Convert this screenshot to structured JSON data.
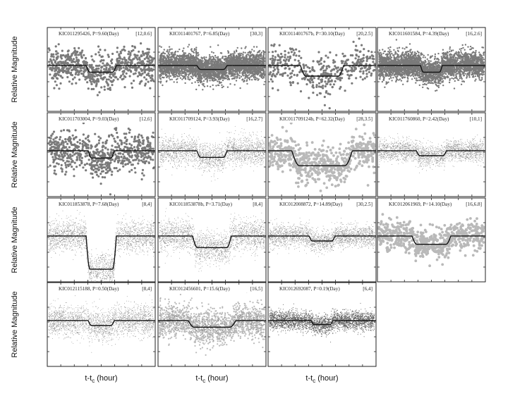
{
  "figure": {
    "y_axis_label": "Relative Magnitude",
    "x_axis_label_main": "t-t",
    "x_axis_label_sub": "c",
    "x_axis_label_unit": " (hour)"
  },
  "colors": {
    "axis": "#222222",
    "model_line": "#111111",
    "dark_points": "#7a7a7a",
    "light_points": "#b9b9b9",
    "fine_points": "#8c8c8c"
  },
  "chart_data": [
    {
      "type": "scatter",
      "title": "KIC011295426, P=9.60(Day)",
      "tag": "[12,0.6]",
      "point_style": "dark-large",
      "depth": 0.2,
      "noise": 0.55,
      "width": 0.14,
      "row": 0,
      "col": 0
    },
    {
      "type": "scatter",
      "title": "KIC011401767, P=6.85(Day)",
      "tag": "[30,3]",
      "point_style": "dark-dense",
      "depth": 0.12,
      "noise": 0.42,
      "width": 0.14,
      "row": 0,
      "col": 1
    },
    {
      "type": "scatter",
      "title": "KIC011401767b, P=30.10(Day)",
      "tag": "[20,2.5]",
      "point_style": "dark-large-sparse",
      "depth": 0.32,
      "noise": 0.6,
      "width": 0.2,
      "row": 0,
      "col": 2
    },
    {
      "type": "scatter",
      "title": "KIC011601584, P=4.39(Day)",
      "tag": "[16,2.6]",
      "point_style": "dark-dense",
      "depth": 0.2,
      "noise": 0.42,
      "width": 0.1,
      "row": 0,
      "col": 3
    },
    {
      "type": "scatter",
      "title": "KIC011703004, P=9.03(Day)",
      "tag": "[12,6]",
      "point_style": "dark-large",
      "depth": 0.22,
      "noise": 0.6,
      "width": 0.12,
      "row": 1,
      "col": 0
    },
    {
      "type": "scatter",
      "title": "KIC011709124, P=3.93(Day)",
      "tag": "[16,2.7]",
      "point_style": "fine",
      "depth": 0.2,
      "noise": 0.45,
      "width": 0.14,
      "row": 1,
      "col": 1
    },
    {
      "type": "scatter",
      "title": "KIC011709124b, P=62.32(Day)",
      "tag": "[28,3.5]",
      "point_style": "light-large",
      "depth": 0.45,
      "noise": 0.6,
      "width": 0.28,
      "row": 1,
      "col": 2
    },
    {
      "type": "scatter",
      "title": "KIC011760860, P=2.42(Day)",
      "tag": "[10,1]",
      "point_style": "fine",
      "depth": 0.15,
      "noise": 0.35,
      "width": 0.14,
      "row": 1,
      "col": 3
    },
    {
      "type": "scatter",
      "title": "KIC011853878, P=7.68(Day)",
      "tag": "[8,4]",
      "point_style": "fine",
      "depth": 1.0,
      "noise": 0.5,
      "width": 0.14,
      "row": 2,
      "col": 0
    },
    {
      "type": "scatter",
      "title": "KIC011853878b, P=3.71(Day)",
      "tag": "[8,4]",
      "point_style": "fine",
      "depth": 0.35,
      "noise": 0.5,
      "width": 0.18,
      "row": 2,
      "col": 1
    },
    {
      "type": "scatter",
      "title": "KIC012008872, P=14.89(Day)",
      "tag": "[30,2.5]",
      "point_style": "fine",
      "depth": 0.15,
      "noise": 0.35,
      "width": 0.12,
      "row": 2,
      "col": 2
    },
    {
      "type": "scatter",
      "title": "KIC012061969, P=14.10(Day)",
      "tag": "[16,6.8]",
      "point_style": "light-large",
      "depth": 0.25,
      "noise": 0.5,
      "width": 0.18,
      "row": 2,
      "col": 3
    },
    {
      "type": "scatter",
      "title": "KIC012115188, P=0.50(Day)",
      "tag": "[8,4]",
      "point_style": "fine",
      "depth": 0.15,
      "noise": 0.5,
      "width": 0.12,
      "row": 3,
      "col": 0
    },
    {
      "type": "scatter",
      "title": "KIC012456601, P=15.6(Day)",
      "tag": "[16,5]",
      "point_style": "light-mixed",
      "depth": 0.2,
      "noise": 0.55,
      "width": 0.22,
      "row": 3,
      "col": 1
    },
    {
      "type": "scatter",
      "title": "KIC012692087, P=0.19(Day)",
      "tag": "[6,4]",
      "point_style": "dense-band",
      "depth": 0.12,
      "noise": 0.3,
      "width": 0.1,
      "row": 3,
      "col": 2
    }
  ]
}
